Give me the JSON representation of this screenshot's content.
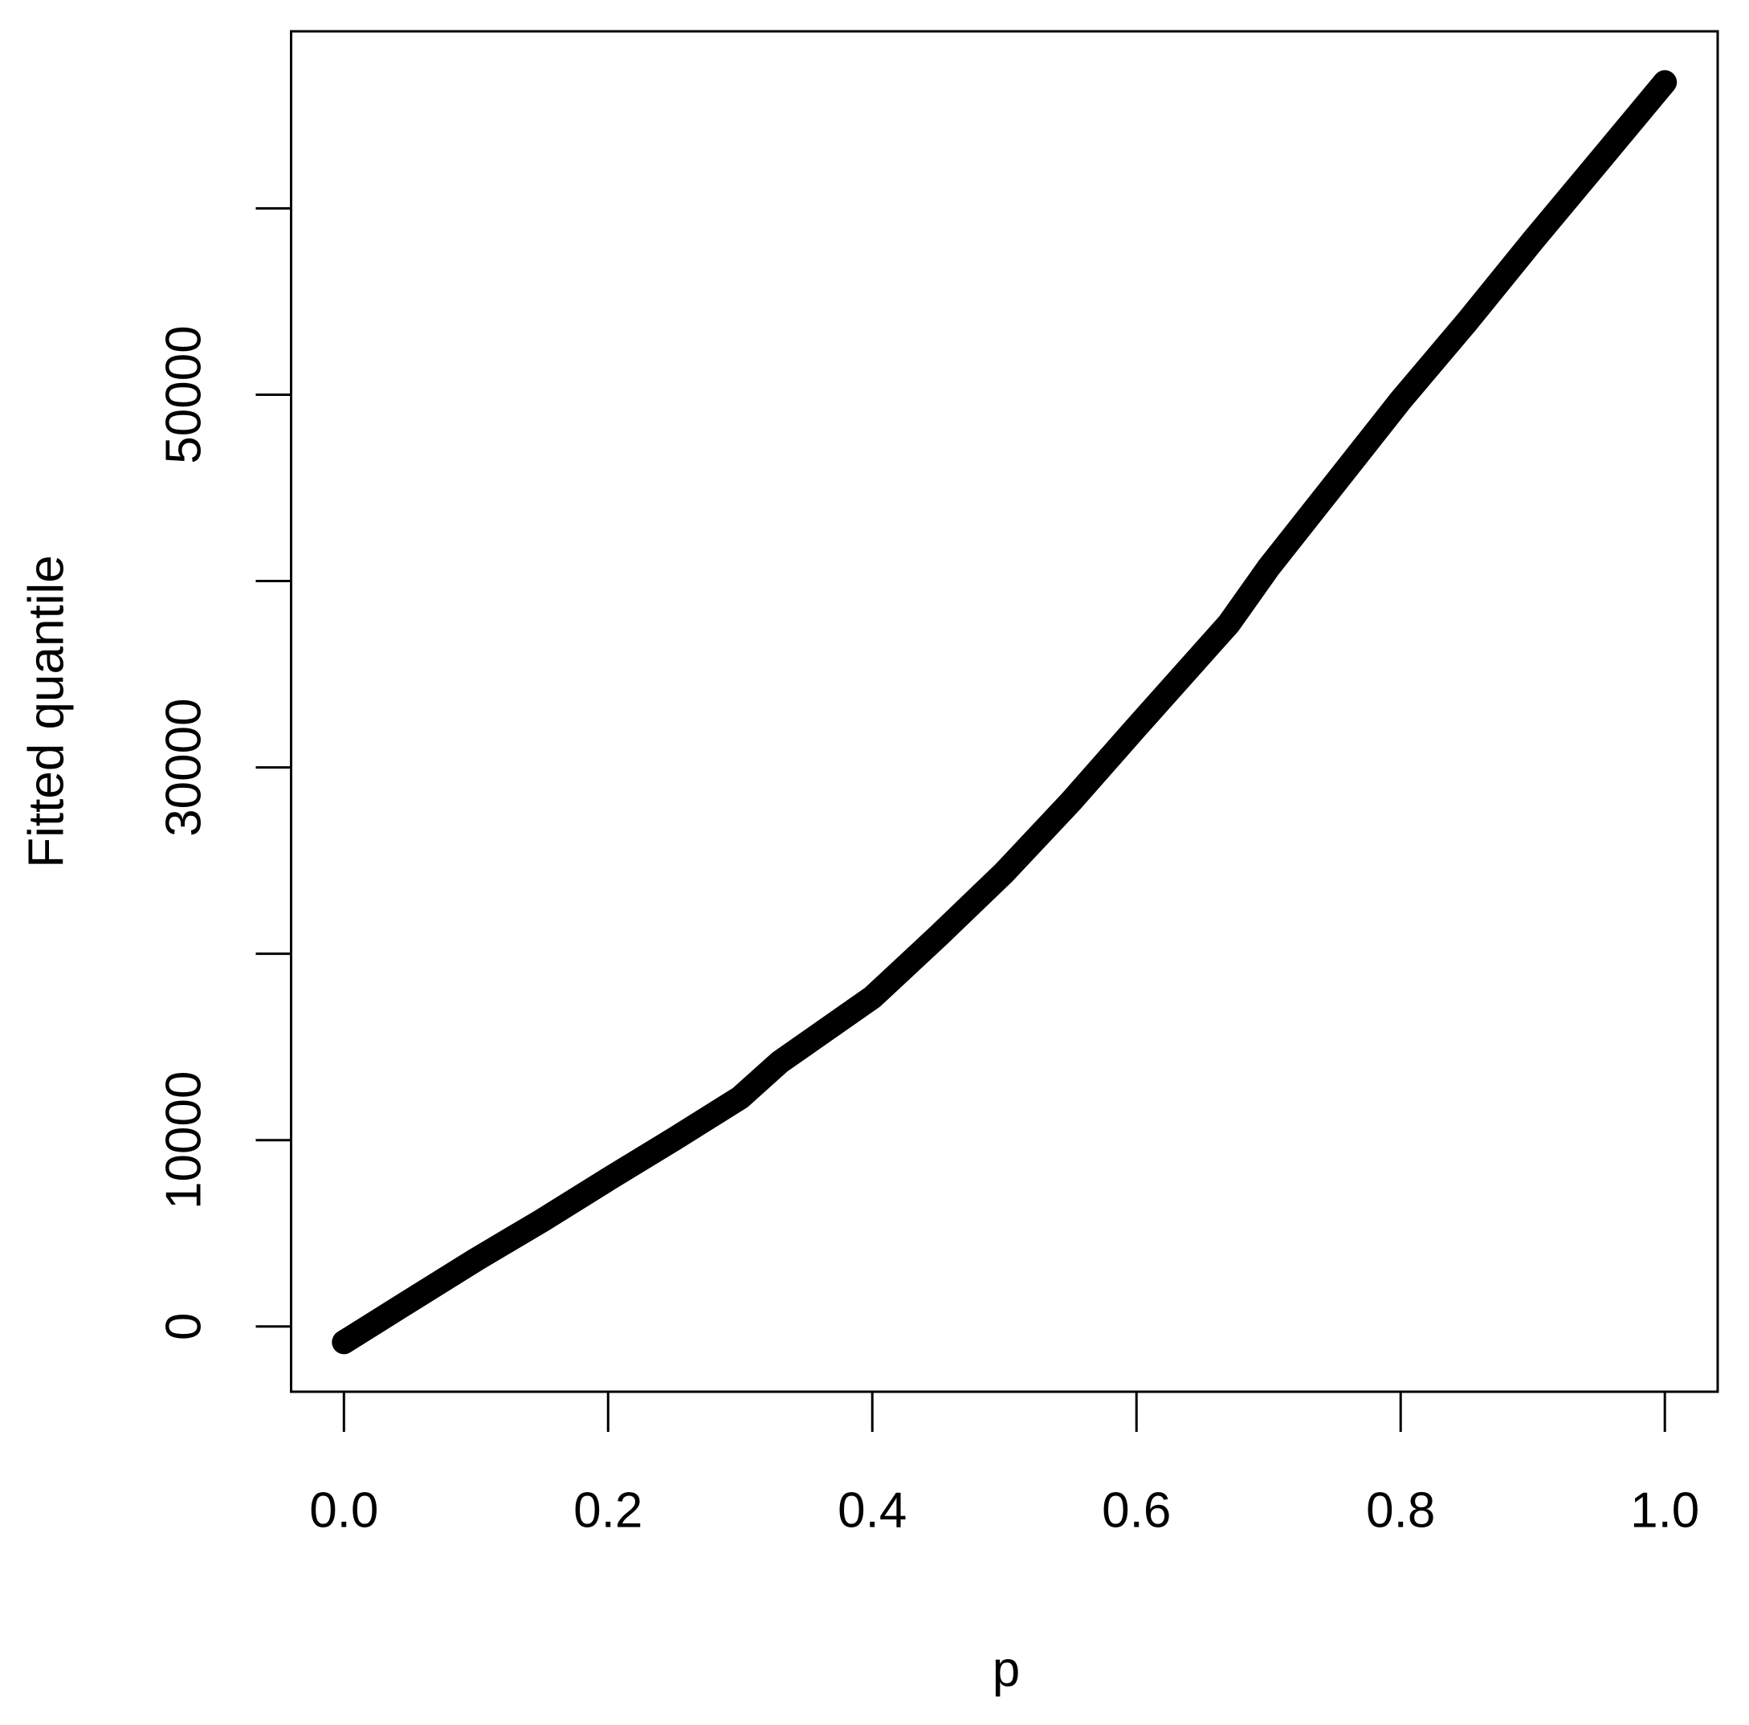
{
  "chart_data": {
    "type": "line",
    "x_label": "p",
    "y_label": "Fitted quantile",
    "x": [
      0,
      0.05,
      0.1,
      0.15,
      0.2,
      0.25,
      0.3,
      0.33,
      0.4,
      0.45,
      0.5,
      0.55,
      0.6,
      0.67,
      0.7,
      0.75,
      0.8,
      0.85,
      0.9,
      0.95,
      1.0
    ],
    "series": [
      {
        "color": "#000000",
        "values": [
          -840,
          1380,
          3590,
          5690,
          7900,
          10060,
          12280,
          14190,
          17660,
          20960,
          24370,
          28140,
          32160,
          37720,
          40720,
          45210,
          49700,
          53890,
          58260,
          62510,
          66770
        ]
      }
    ],
    "xlim": [
      -0.04,
      1.04
    ],
    "ylim": [
      -3500,
      69500
    ],
    "xticks": [
      {
        "value": 0,
        "label": "0.0"
      },
      0.2,
      0.4,
      0.6,
      0.8,
      {
        "value": 1,
        "label": "1.0"
      }
    ],
    "yticks": [
      0,
      10000,
      {
        "value": 20000,
        "label": null
      },
      30000,
      {
        "value": 40000,
        "label": null
      },
      50000,
      {
        "value": 60000,
        "label": null
      }
    ]
  }
}
